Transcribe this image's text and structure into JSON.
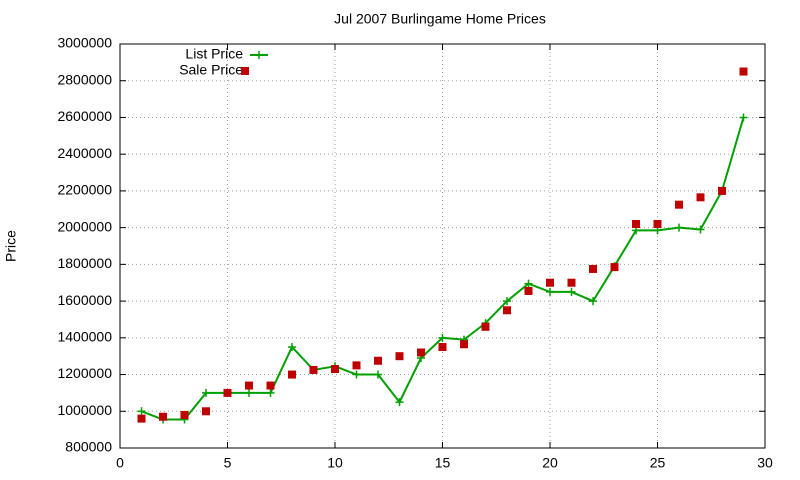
{
  "chart_data": {
    "type": "line",
    "title": "Jul 2007 Burlingame Home Prices",
    "y_label": "Price",
    "x": [
      1,
      2,
      3,
      4,
      5,
      6,
      7,
      8,
      9,
      10,
      11,
      12,
      13,
      14,
      15,
      16,
      17,
      18,
      19,
      20,
      21,
      22,
      23,
      24,
      25,
      26,
      27,
      28,
      29
    ],
    "series": [
      {
        "name": "List Price",
        "color": "#00a000",
        "style": "linespoints",
        "values": [
          1000000,
          955000,
          955000,
          1100000,
          1100000,
          1100000,
          1100000,
          1350000,
          1225000,
          1245000,
          1200000,
          1200000,
          1050000,
          1290000,
          1400000,
          1390000,
          1480000,
          1600000,
          1695000,
          1650000,
          1650000,
          1600000,
          1790000,
          1985000,
          1985000,
          2000000,
          1990000,
          2200000,
          2600000
        ]
      },
      {
        "name": "Sale Price",
        "color": "#c00000",
        "style": "points",
        "values": [
          960000,
          970000,
          980000,
          1000000,
          1100000,
          1140000,
          1140000,
          1200000,
          1225000,
          1230000,
          1250000,
          1275000,
          1300000,
          1320000,
          1350000,
          1365000,
          1460000,
          1550000,
          1655000,
          1700000,
          1700000,
          1775000,
          1785000,
          2020000,
          2020000,
          2125000,
          2165000,
          2200000,
          2850000
        ]
      }
    ],
    "xlim": [
      0,
      30
    ],
    "xticks": [
      0,
      5,
      10,
      15,
      20,
      25,
      30
    ],
    "ylim": [
      800000,
      3000000
    ],
    "yticks": [
      800000,
      1000000,
      1200000,
      1400000,
      1600000,
      1800000,
      2000000,
      2200000,
      2400000,
      2600000,
      2800000,
      3000000
    ],
    "grid": true,
    "legend": "top-left"
  }
}
